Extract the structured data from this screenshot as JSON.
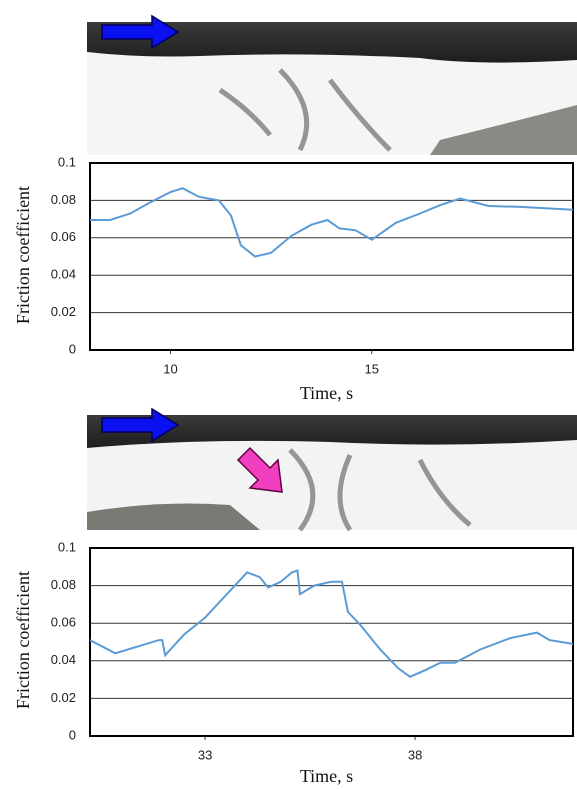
{
  "chart_data": [
    {
      "type": "line",
      "x_label": "Time, s",
      "y_label": "Friction coefficient",
      "xlim": [
        8,
        20
      ],
      "xticks": [
        10,
        15
      ],
      "ylim": [
        0,
        0.1
      ],
      "yticks": [
        0,
        0.02,
        0.04,
        0.06,
        0.08,
        0.1
      ],
      "grid": true,
      "series": [
        {
          "color": "#5b9bd5",
          "x": [
            8,
            8.5,
            9,
            9.5,
            10,
            10.3,
            10.7,
            11.2,
            11.5,
            11.75,
            12.1,
            12.5,
            13,
            13.5,
            13.9,
            14.2,
            14.6,
            15,
            15.6,
            16.2,
            16.7,
            17.2,
            17.9,
            18.7,
            20
          ],
          "values": [
            0.0695,
            0.0695,
            0.073,
            0.079,
            0.0845,
            0.0865,
            0.082,
            0.08,
            0.072,
            0.056,
            0.05,
            0.052,
            0.061,
            0.067,
            0.0695,
            0.065,
            0.064,
            0.059,
            0.068,
            0.073,
            0.0775,
            0.081,
            0.077,
            0.0765,
            0.075
          ]
        }
      ]
    },
    {
      "type": "line",
      "x_label": "Time, s",
      "y_label": "Friction coefficient",
      "xlim": [
        30.26,
        41.76
      ],
      "xticks": [
        33,
        38
      ],
      "ylim": [
        0,
        0.1
      ],
      "yticks": [
        0,
        0.02,
        0.04,
        0.06,
        0.08,
        0.1
      ],
      "grid": true,
      "series": [
        {
          "color": "#5b9bd5",
          "x": [
            30.26,
            30.86,
            31.45,
            31.9,
            31.98,
            32.05,
            32.5,
            33,
            33.5,
            34,
            34.3,
            34.5,
            34.8,
            35.07,
            35.2,
            35.26,
            35.6,
            36,
            36.26,
            36.4,
            36.7,
            37.17,
            37.6,
            37.88,
            38.24,
            38.6,
            38.95,
            39.55,
            40.26,
            40.9,
            41.2,
            41.76
          ],
          "values": [
            0.051,
            0.044,
            0.048,
            0.051,
            0.051,
            0.043,
            0.054,
            0.063,
            0.075,
            0.087,
            0.0845,
            0.079,
            0.082,
            0.087,
            0.088,
            0.0755,
            0.08,
            0.082,
            0.082,
            0.066,
            0.059,
            0.046,
            0.036,
            0.0315,
            0.035,
            0.039,
            0.039,
            0.046,
            0.052,
            0.055,
            0.051,
            0.049
          ]
        }
      ]
    }
  ]
}
